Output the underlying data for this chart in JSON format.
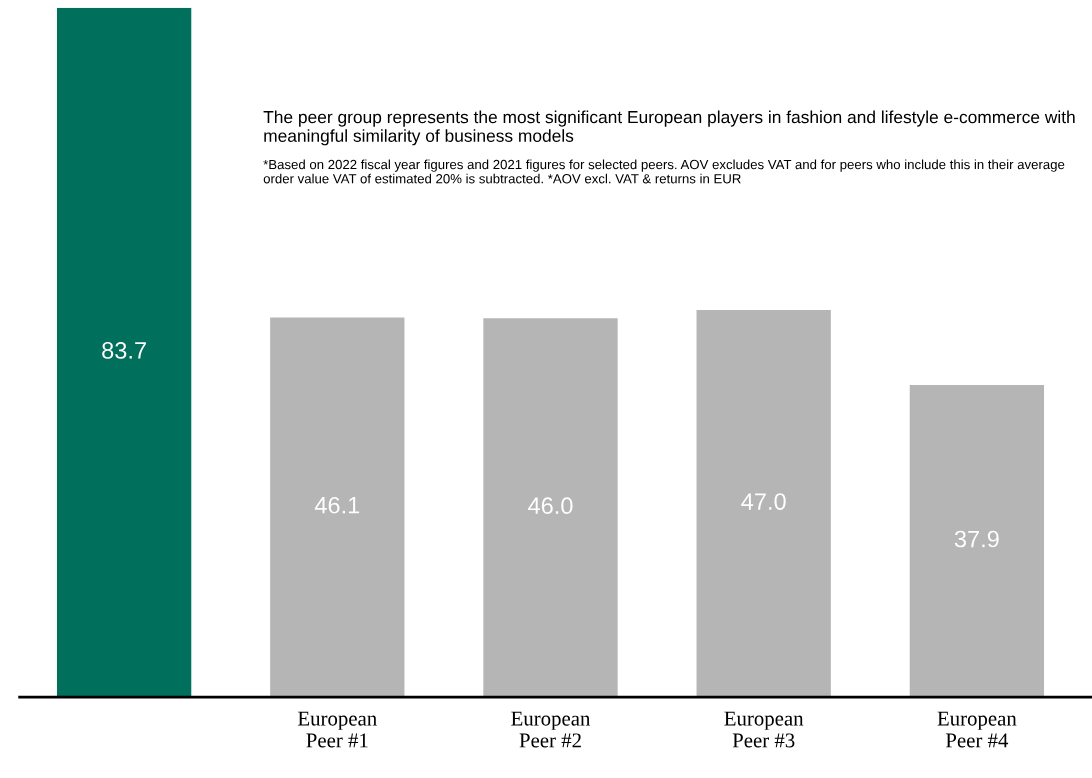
{
  "chart_data": {
    "type": "bar",
    "title": "The peer group represents the most significant European players in fashion and lifestyle e-commerce with meaningful similarity of business models",
    "annotations": [
      "*Based on 2022 fiscal year figures and 2021 figures for selected peers. AOV excludes VAT and for peers who include this in their average order value VAT of estimated 20% is subtracted. *AOV excl. VAT & returns in EUR"
    ],
    "categories": [
      null,
      "European\nPeer #1",
      "European\nPeer #2",
      "European\nPeer #3",
      "European\nPeer #4"
    ],
    "values": [
      83.7,
      46.1,
      46.0,
      47.0,
      37.9
    ],
    "colors": [
      "#006f5b",
      "#b5b5b5",
      "#b5b5b5",
      "#b5b5b5",
      "#b5b5b5"
    ],
    "value_labels": [
      "83.7",
      "46.1",
      "46.0",
      "47.0",
      "37.9"
    ],
    "grid": false,
    "legend": false
  }
}
